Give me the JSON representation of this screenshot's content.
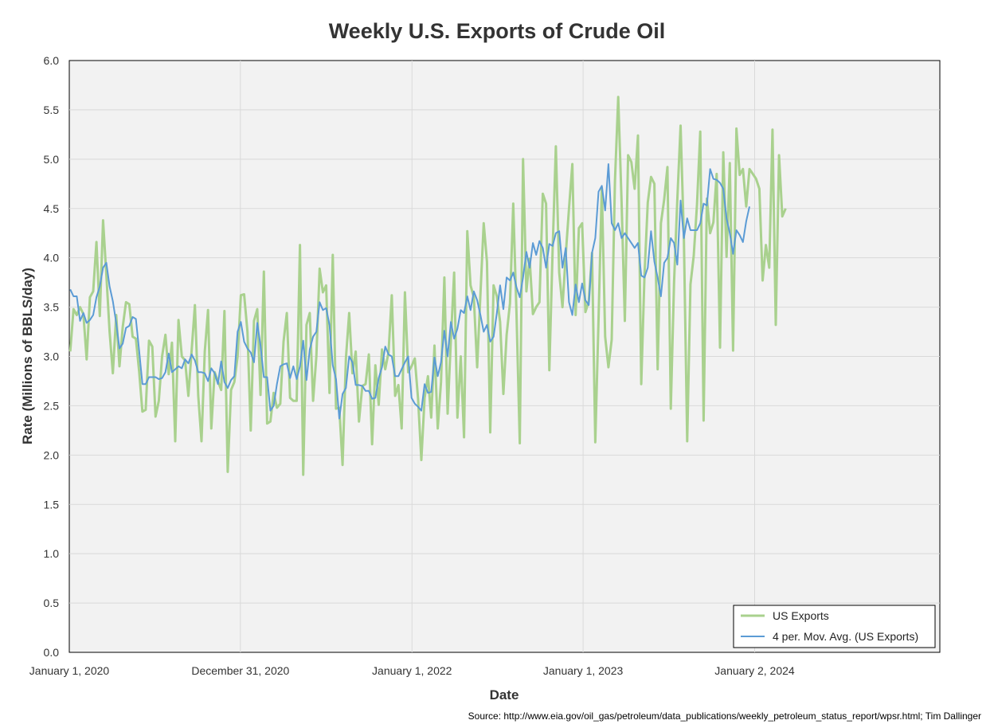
{
  "chart_data": {
    "type": "line",
    "title": "Weekly U.S. Exports of Crude Oil",
    "xlabel": "Date",
    "ylabel": "Rate (Millions of BBLS/day)",
    "ylim": [
      0,
      6
    ],
    "yticks": [
      "0.0",
      "0.5",
      "1.0",
      "1.5",
      "2.0",
      "2.5",
      "3.0",
      "3.5",
      "4.0",
      "4.5",
      "5.0",
      "5.5",
      "6.0"
    ],
    "xlim": [
      "2020-01-01",
      "2025-01-31"
    ],
    "xticks": [
      {
        "date": "2020-01-01",
        "label": "January 1, 2020"
      },
      {
        "date": "2020-12-31",
        "label": "December 31, 2020"
      },
      {
        "date": "2022-01-01",
        "label": "January 1, 2022"
      },
      {
        "date": "2023-01-01",
        "label": "January 1, 2023"
      },
      {
        "date": "2024-01-02",
        "label": "January 2, 2024"
      }
    ],
    "grid": true,
    "legend_position": "bottom-right",
    "series": [
      {
        "name": "US Exports",
        "color": "#a9d18e",
        "start_date": "2020-01-03",
        "values": [
          3.05,
          3.48,
          3.42,
          3.5,
          3.43,
          2.97,
          3.6,
          3.66,
          4.16,
          3.41,
          4.38,
          3.83,
          3.25,
          2.83,
          3.42,
          2.9,
          3.3,
          3.55,
          3.53,
          3.2,
          3.18,
          2.85,
          2.44,
          2.46,
          3.16,
          3.1,
          2.39,
          2.55,
          3.0,
          3.22,
          2.82,
          3.14,
          2.14,
          3.37,
          3.0,
          2.96,
          2.6,
          3.06,
          3.52,
          2.6,
          2.14,
          3.05,
          3.47,
          2.27,
          2.84,
          2.75,
          2.66,
          3.46,
          1.83,
          2.66,
          2.74,
          3.0,
          3.62,
          3.63,
          3.25,
          2.25,
          3.36,
          3.48,
          2.61,
          3.86,
          2.32,
          2.34,
          2.63,
          2.48,
          2.52,
          3.15,
          3.44,
          2.58,
          2.55,
          2.55,
          4.13,
          1.8,
          3.32,
          3.44,
          2.55,
          3.0,
          3.89,
          3.65,
          3.72,
          2.63,
          4.03,
          2.47,
          2.48,
          1.9,
          2.98,
          3.44,
          2.83,
          3.05,
          2.34,
          2.7,
          2.72,
          3.02,
          2.11,
          2.91,
          2.51,
          3.07,
          2.87,
          3.04,
          3.62,
          2.6,
          2.71,
          2.27,
          3.65,
          2.84,
          2.9,
          2.98,
          2.57,
          1.95,
          2.58,
          2.8,
          2.38,
          3.11,
          2.27,
          2.74,
          3.8,
          2.42,
          3.17,
          3.85,
          2.38,
          3.0,
          2.18,
          4.27,
          3.72,
          3.6,
          2.89,
          3.63,
          4.35,
          3.96,
          2.23,
          3.72,
          3.61,
          3.35,
          2.62,
          3.22,
          3.54,
          4.55,
          3.43,
          2.12,
          5.0,
          3.66,
          3.99,
          3.43,
          3.5,
          3.55,
          4.65,
          4.55,
          2.86,
          4.07,
          5.13,
          3.85,
          3.5,
          4.03,
          4.5,
          4.95,
          3.42,
          4.3,
          4.35,
          3.45,
          3.56,
          4.05,
          2.13,
          3.38,
          4.71,
          3.2,
          2.89,
          3.17,
          4.78,
          5.63,
          4.57,
          3.36,
          5.04,
          4.97,
          4.7,
          5.24,
          2.72,
          3.83,
          4.56,
          4.82,
          4.75,
          2.87,
          4.35,
          4.59,
          4.92,
          2.47,
          3.75,
          4.59,
          5.34,
          4.22,
          2.14,
          3.73,
          4.02,
          4.54,
          5.28,
          2.35,
          4.6,
          4.25,
          4.36,
          4.85,
          3.09,
          5.07,
          4.01,
          4.96,
          3.06,
          5.31,
          4.84,
          4.9,
          4.52,
          4.9,
          4.85,
          4.8,
          4.7,
          3.77,
          4.13,
          3.9,
          5.3,
          3.32,
          5.04,
          4.42,
          4.5
        ]
      },
      {
        "name": "4 per. Mov. Avg. (US Exports)",
        "color": "#5b9bd5",
        "start_date": "2020-01-03",
        "values": [
          3.68,
          3.61,
          3.61,
          3.36,
          3.44,
          3.34,
          3.37,
          3.42,
          3.6,
          3.71,
          3.9,
          3.95,
          3.71,
          3.56,
          3.34,
          3.08,
          3.13,
          3.29,
          3.31,
          3.4,
          3.38,
          3.06,
          2.72,
          2.72,
          2.79,
          2.79,
          2.79,
          2.77,
          2.78,
          2.84,
          3.03,
          2.84,
          2.87,
          2.9,
          2.88,
          2.97,
          2.93,
          3.02,
          2.96,
          2.84,
          2.84,
          2.83,
          2.75,
          2.88,
          2.83,
          2.72,
          2.95,
          2.74,
          2.68,
          2.76,
          2.8,
          3.25,
          3.35,
          3.15,
          3.08,
          3.04,
          2.94,
          3.34,
          3.11,
          2.79,
          2.79,
          2.45,
          2.5,
          2.72,
          2.9,
          2.92,
          2.93,
          2.78,
          2.9,
          2.77,
          2.9,
          3.16,
          2.76,
          3.07,
          3.2,
          3.25,
          3.55,
          3.47,
          3.49,
          3.32,
          2.91,
          2.77,
          2.37,
          2.62,
          2.68,
          3.0,
          2.94,
          2.71,
          2.71,
          2.7,
          2.65,
          2.65,
          2.57,
          2.58,
          2.78,
          2.89,
          3.1,
          3.02,
          3.0,
          2.8,
          2.8,
          2.87,
          2.94,
          3.0,
          2.58,
          2.52,
          2.49,
          2.45,
          2.72,
          2.63,
          2.64,
          2.99,
          2.8,
          2.94,
          3.26,
          3.0,
          3.35,
          3.18,
          3.28,
          3.47,
          3.44,
          3.61,
          3.47,
          3.66,
          3.57,
          3.42,
          3.25,
          3.32,
          3.15,
          3.2,
          3.44,
          3.72,
          3.48,
          3.8,
          3.77,
          3.85,
          3.7,
          3.6,
          3.8,
          4.06,
          3.9,
          4.15,
          4.03,
          4.17,
          4.1,
          3.9,
          4.14,
          4.12,
          4.25,
          4.27,
          3.9,
          4.1,
          3.55,
          3.42,
          3.73,
          3.55,
          3.74,
          3.57,
          3.52,
          4.05,
          4.2,
          4.67,
          4.73,
          4.48,
          4.95,
          4.35,
          4.28,
          4.35,
          4.2,
          4.25,
          4.2,
          4.15,
          4.1,
          4.15,
          3.82,
          3.8,
          3.9,
          4.27,
          3.96,
          3.8,
          3.61,
          3.95,
          4.0,
          4.2,
          4.15,
          3.93,
          4.58,
          4.2,
          4.4,
          4.28,
          4.28,
          4.28,
          4.35,
          4.55,
          4.53,
          4.9,
          4.8,
          4.79,
          4.76,
          4.7,
          4.4,
          4.25,
          4.04,
          4.28,
          4.23,
          4.16,
          4.37,
          4.52
        ]
      }
    ],
    "source": "Source: http://www.eia.gov/oil_gas/petroleum/data_publications/weekly_petroleum_status_report/wpsr.html; Tim Dallinger"
  }
}
